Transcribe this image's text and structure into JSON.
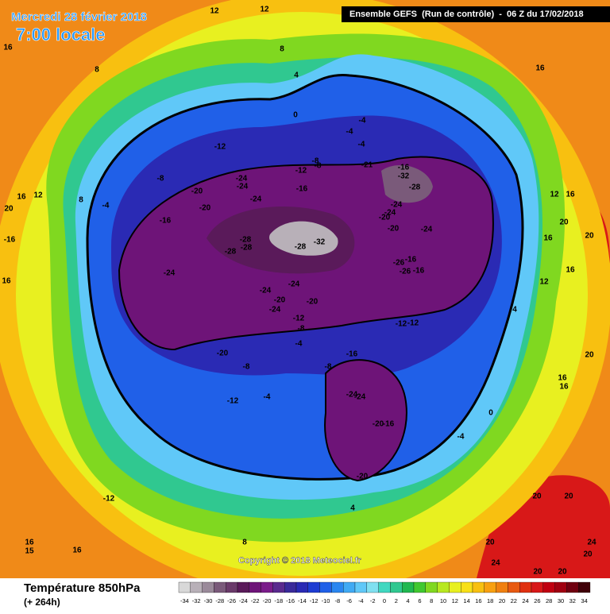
{
  "header": {
    "date": "Mercredi 28 février 2018",
    "time": "7:00 locale",
    "run": "Ensemble GEFS  (Run de contrôle)  -  06 Z du 17/02/2018"
  },
  "copyright": "Copyright © 2018 Meteociel.fr",
  "footer": {
    "title": "Température 850hPa",
    "subtitle": "(+ 264h)"
  },
  "colorbar": {
    "ticks": [
      -34,
      -32,
      -30,
      -28,
      -26,
      -24,
      -22,
      -20,
      -18,
      -16,
      -14,
      -12,
      -10,
      -8,
      -6,
      -4,
      -2,
      0,
      2,
      4,
      6,
      8,
      10,
      12,
      14,
      16,
      18,
      20,
      22,
      24,
      26,
      28,
      30,
      32,
      34
    ],
    "colors": [
      "#d8d8d8",
      "#b8b0b8",
      "#9a8a9a",
      "#7a5a7a",
      "#6a3a6a",
      "#5a1a5a",
      "#6e1478",
      "#7a1c8a",
      "#5a2a8e",
      "#3a2a9a",
      "#2a2ab4",
      "#1e3cd2",
      "#2060e8",
      "#2a86f0",
      "#40aaf4",
      "#60c8f8",
      "#80e0f0",
      "#40d8c0",
      "#30c890",
      "#20b850",
      "#40c830",
      "#80d820",
      "#b8e820",
      "#e8f020",
      "#f8e018",
      "#f8c010",
      "#f8a010",
      "#f08010",
      "#e85a10",
      "#e03010",
      "#d81818",
      "#c00010",
      "#a00010",
      "#700010",
      "#400008"
    ]
  },
  "contour_labels": [
    -12,
    -8,
    -20,
    -24,
    -24,
    -20,
    -16,
    -24,
    -28,
    -28,
    -28,
    -28,
    -32,
    -24,
    -24,
    -24,
    -20,
    -20,
    -24,
    -12,
    -8,
    -4,
    -20,
    -8,
    -4,
    -12,
    -8,
    -16,
    -24,
    -24,
    -20,
    -16,
    -20,
    -12,
    -12,
    -26,
    -16,
    -26,
    -16,
    -20,
    -24,
    -20,
    -24,
    -24,
    -28,
    -32,
    -16,
    -21,
    -16,
    -12,
    -8,
    -8,
    -4,
    -4,
    -4,
    0,
    4,
    8,
    12,
    12,
    16,
    8,
    16,
    12,
    20,
    -16,
    -4,
    8,
    16,
    -12,
    16,
    16,
    15,
    8,
    4,
    -4,
    0,
    4,
    12,
    16,
    20,
    16,
    20,
    12,
    16,
    16,
    20,
    16,
    16,
    20,
    20,
    24,
    20,
    20,
    20,
    24,
    20
  ]
}
